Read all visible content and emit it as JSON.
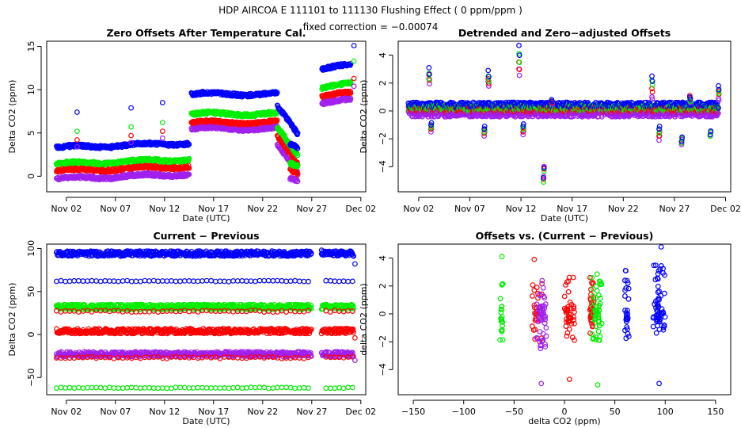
{
  "header": {
    "title": "HDP   AIRCOA E   111101 to 111130   Flushing Effect ( 0 ppm/ppm )",
    "subtitle": "fixed correction = −0.00074"
  },
  "colors": {
    "blue": "#0000ff",
    "green": "#00ee00",
    "red": "#ff0000",
    "purple": "#a020f0",
    "axis": "#000000"
  },
  "chart_data": [
    {
      "type": "scatter",
      "title": "Zero Offsets After Temperature Cal.",
      "xlabel": "Date (UTC)",
      "ylabel": "Delta CO2 (ppm)",
      "xlim": [
        -1,
        31.5
      ],
      "ylim": [
        -1.8,
        15.6
      ],
      "xticks": [
        1,
        6,
        11,
        16,
        21,
        26,
        31
      ],
      "xtick_labels": [
        "Nov 02",
        "Nov 07",
        "Nov 12",
        "Nov 17",
        "Nov 22",
        "Nov 27",
        "Dec 02"
      ],
      "yticks": [
        0,
        5,
        10,
        15
      ],
      "ytick_labels": [
        "0",
        "5",
        "10",
        "15"
      ],
      "gaps": [
        [
          13.5,
          13.7
        ],
        [
          24.6,
          26.2
        ],
        [
          26.8,
          27.0
        ]
      ],
      "segments": [
        {
          "start": 0,
          "end": 13.5,
          "base": [
            3.3,
            1.4,
            0.6,
            -0.3
          ],
          "slope": 0.04
        },
        {
          "start": 13.7,
          "end": 22.5,
          "base": [
            9.5,
            7.2,
            6.2,
            5.5
          ],
          "slope": 0.0
        },
        {
          "start": 22.5,
          "end": 24.6,
          "base": [
            8.0,
            5.5,
            4.5,
            3.5
          ],
          "slope": -1.5
        },
        {
          "start": 23.8,
          "end": 25.7,
          "base": [
            3.6,
            1.4,
            0.6,
            -0.3
          ],
          "slope": -0.3
        },
        {
          "start": 27.0,
          "end": 30.0,
          "base": [
            12.5,
            10.3,
            9.3,
            8.5
          ],
          "slope": 0.1
        }
      ],
      "spikes": [
        {
          "x": 2.1,
          "values": [
            7.4,
            5.2,
            4.2,
            3.4
          ]
        },
        {
          "x": 7.6,
          "values": [
            7.9,
            5.7,
            4.7,
            3.9
          ]
        },
        {
          "x": 10.8,
          "values": [
            8.5,
            6.2,
            5.2,
            4.4
          ]
        },
        {
          "x": 30.3,
          "values": [
            15.1,
            13.3,
            11.3,
            10.4
          ]
        }
      ],
      "series": [
        {
          "name": "blue",
          "color": "#0000ff"
        },
        {
          "name": "green",
          "color": "#00ee00"
        },
        {
          "name": "red",
          "color": "#ff0000"
        },
        {
          "name": "purple",
          "color": "#a020f0"
        }
      ]
    },
    {
      "type": "scatter",
      "title": "Detrended and Zero−adjusted Offsets",
      "xlabel": "Date (UTC)",
      "ylabel": "Delta CO2 (ppm)",
      "xlim": [
        -1,
        31.5
      ],
      "ylim": [
        -5.8,
        5.0
      ],
      "xticks": [
        1,
        6,
        11,
        16,
        21,
        26,
        31
      ],
      "xtick_labels": [
        "Nov 02",
        "Nov 07",
        "Nov 12",
        "Nov 17",
        "Nov 22",
        "Nov 27",
        "Dec 02"
      ],
      "yticks": [
        -4,
        -2,
        0,
        2,
        4
      ],
      "ytick_labels": [
        "−4",
        "−2",
        "0",
        "2",
        "4"
      ],
      "baseline": [
        0.4,
        0.2,
        0.1,
        -0.2
      ],
      "spikes": [
        {
          "x": 2.0,
          "values": [
            3.1,
            2.7,
            2.6,
            2.3
          ]
        },
        {
          "x": 2.2,
          "values": [
            -1.0,
            -1.2,
            -1.3,
            -1.5
          ]
        },
        {
          "x": 7.8,
          "values": [
            2.9,
            2.5,
            2.3,
            2.1
          ]
        },
        {
          "x": 7.4,
          "values": [
            -1.3,
            -1.5,
            -1.6,
            -1.8
          ]
        },
        {
          "x": 10.8,
          "values": [
            4.7,
            4.1,
            3.5,
            3.0
          ]
        },
        {
          "x": 11.2,
          "values": [
            -1.1,
            -1.3,
            -1.5,
            -1.7
          ]
        },
        {
          "x": 13.2,
          "values": [
            -4.8,
            -5.1,
            -4.9,
            -4.7
          ]
        },
        {
          "x": 14.0,
          "values": [
            0.8,
            0.8,
            0.7,
            0.6
          ]
        },
        {
          "x": 23.8,
          "values": [
            2.5,
            2.2,
            1.6,
            1.0
          ]
        },
        {
          "x": 24.5,
          "values": [
            -1.3,
            -1.6,
            -1.8,
            -2.1
          ]
        },
        {
          "x": 26.7,
          "values": [
            -2.2,
            -2.3,
            -2.3,
            -2.4
          ]
        },
        {
          "x": 27.5,
          "values": [
            1.0,
            0.8,
            1.1,
            0.7
          ]
        },
        {
          "x": 29.5,
          "values": [
            -1.7,
            -1.8,
            -1.7,
            -1.8
          ]
        },
        {
          "x": 30.3,
          "values": [
            1.8,
            1.5,
            1.4,
            0.9
          ]
        }
      ],
      "series": [
        {
          "name": "blue",
          "color": "#0000ff"
        },
        {
          "name": "green",
          "color": "#00ee00"
        },
        {
          "name": "red",
          "color": "#ff0000"
        },
        {
          "name": "purple",
          "color": "#a020f0"
        }
      ]
    },
    {
      "type": "scatter",
      "title": "Current − Previous",
      "xlabel": "Date (UTC)",
      "ylabel": "Delta CO2 (ppm)",
      "xlim": [
        -1,
        31.5
      ],
      "ylim": [
        -70,
        105
      ],
      "xticks": [
        1,
        6,
        11,
        16,
        21,
        26,
        31
      ],
      "xtick_labels": [
        "Nov 02",
        "Nov 07",
        "Nov 12",
        "Nov 17",
        "Nov 22",
        "Nov 27",
        "Dec 02"
      ],
      "yticks": [
        -50,
        0,
        50,
        100
      ],
      "ytick_labels": [
        "−50",
        "0",
        "50",
        "100"
      ],
      "gaps": [
        [
          26.0,
          27.0
        ]
      ],
      "bands": [
        {
          "value": 94,
          "color": "#0000ff",
          "spread": 3.0,
          "dense": true
        },
        {
          "value": 62,
          "color": "#0000ff",
          "spread": 0.6,
          "dense": false
        },
        {
          "value": 32,
          "color": "#00ee00",
          "spread": 3.0,
          "dense": true
        },
        {
          "value": 27,
          "color": "#ff0000",
          "spread": 1.0,
          "dense": false
        },
        {
          "value": 4,
          "color": "#ff0000",
          "spread": 3.0,
          "dense": true
        },
        {
          "value": -23,
          "color": "#a020f0",
          "spread": 3.0,
          "dense": true
        },
        {
          "value": -27,
          "color": "#ff0000",
          "spread": 1.0,
          "dense": false
        },
        {
          "value": -62,
          "color": "#00ee00",
          "spread": 0.6,
          "dense": false
        }
      ],
      "extras": [
        {
          "x": 30.4,
          "y": 82,
          "color": "#0000ff"
        },
        {
          "x": 30.4,
          "y": -4,
          "color": "#ff0000"
        },
        {
          "x": 30.4,
          "y": -30,
          "color": "#a020f0"
        },
        {
          "x": 27.0,
          "y": 98,
          "color": "#0000ff"
        }
      ]
    },
    {
      "type": "scatter",
      "title": "Offsets vs. (Current − Previous)",
      "xlabel": "delta CO2 (ppm)",
      "ylabel": "delta CO2 (ppm)",
      "xlim": [
        -165,
        165
      ],
      "ylim": [
        -5.8,
        5.0
      ],
      "xticks": [
        -150,
        -100,
        -50,
        0,
        50,
        100,
        150
      ],
      "xtick_labels": [
        "−150",
        "−100",
        "−50",
        "0",
        "50",
        "100",
        "150"
      ],
      "yticks": [
        -4,
        -2,
        0,
        2,
        4
      ],
      "ytick_labels": [
        "−4",
        "−2",
        "0",
        "2",
        "4"
      ],
      "clusters": [
        {
          "x": -62,
          "color": "#00ee00",
          "ymin": -2.0,
          "ymax": 2.2,
          "n": 14,
          "xspread": 2
        },
        {
          "x": -27,
          "color": "#ff0000",
          "ymin": -2.2,
          "ymax": 2.5,
          "n": 20,
          "xspread": 5
        },
        {
          "x": -23,
          "color": "#a020f0",
          "ymin": -2.5,
          "ymax": 2.5,
          "n": 34,
          "xspread": 5
        },
        {
          "x": 4,
          "color": "#ff0000",
          "ymin": -2.0,
          "ymax": 2.7,
          "n": 30,
          "xspread": 6
        },
        {
          "x": 27,
          "color": "#ff0000",
          "ymin": -2.0,
          "ymax": 2.7,
          "n": 22,
          "xspread": 2
        },
        {
          "x": 32,
          "color": "#00ee00",
          "ymin": -2.0,
          "ymax": 2.9,
          "n": 34,
          "xspread": 5
        },
        {
          "x": 62,
          "color": "#0000ff",
          "ymin": -1.8,
          "ymax": 3.2,
          "n": 18,
          "xspread": 2
        },
        {
          "x": 94,
          "color": "#0000ff",
          "ymin": -1.5,
          "ymax": 3.6,
          "n": 40,
          "xspread": 6
        }
      ],
      "outliers": [
        {
          "x": -23,
          "y": -5.0,
          "color": "#a020f0"
        },
        {
          "x": -30,
          "y": 3.9,
          "color": "#ff0000"
        },
        {
          "x": -62,
          "y": 4.1,
          "color": "#00ee00"
        },
        {
          "x": 5,
          "y": -4.7,
          "color": "#ff0000"
        },
        {
          "x": 33,
          "y": -5.1,
          "color": "#00ee00"
        },
        {
          "x": 96,
          "y": 4.8,
          "color": "#0000ff"
        },
        {
          "x": 94,
          "y": -5.0,
          "color": "#0000ff"
        }
      ]
    }
  ]
}
